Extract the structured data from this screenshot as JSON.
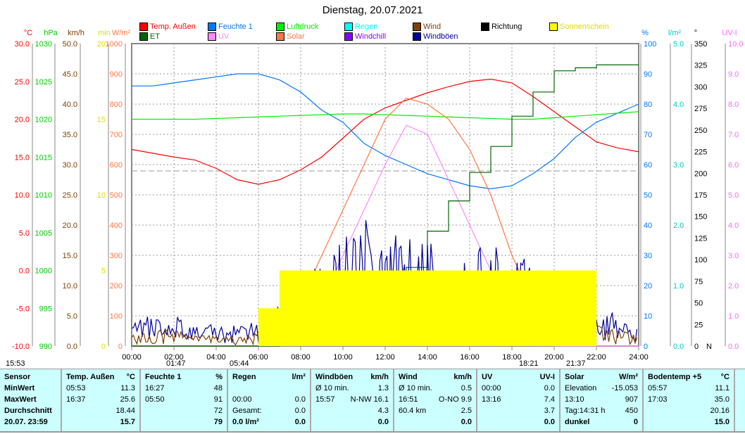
{
  "title": "Dienstag, 20.07.2021",
  "legend": [
    {
      "label": "Temp. Außen",
      "color": "#ff0000"
    },
    {
      "label": "Feuchte 1",
      "color": "#0077ff"
    },
    {
      "label": "Luftdruck",
      "color": "#00ee00"
    },
    {
      "label": "Regen",
      "color": "#00ffff"
    },
    {
      "label": "Wind",
      "color": "#804000"
    },
    {
      "label": "Richtung",
      "color": "#000000"
    },
    {
      "label": "Sonnenschein",
      "color": "#ffff00"
    },
    {
      "label": "ET",
      "color": "#006600"
    },
    {
      "label": "UV",
      "color": "#ff88ff"
    },
    {
      "label": "Solar",
      "color": "#ff7744"
    },
    {
      "label": "Windchill",
      "color": "#8800ff"
    },
    {
      "label": "Windböen",
      "color": "#000099"
    }
  ],
  "chart_data": {
    "type": "line",
    "title": "Dienstag, 20.07.2021",
    "x": [
      0,
      1,
      2,
      3,
      4,
      5,
      6,
      7,
      8,
      9,
      10,
      11,
      12,
      13,
      14,
      15,
      16,
      17,
      18,
      19,
      20,
      21,
      22,
      23,
      24
    ],
    "xticks": [
      "00:00",
      "02:00",
      "04:00",
      "06:00",
      "08:00",
      "10:00",
      "12:00",
      "14:00",
      "16:00",
      "18:00",
      "20:00",
      "22:00",
      "24:00"
    ],
    "axes": [
      {
        "unit": "°C",
        "ticks": [
          "30.0",
          "25.0",
          "20.0",
          "15.0",
          "10.0",
          "5.0",
          "0.0",
          "-5.0",
          "-10.0"
        ],
        "range": [
          -10,
          30
        ],
        "color": "#ff0000"
      },
      {
        "unit": "hPa",
        "ticks": [
          "1030",
          "1025",
          "1020",
          "1015",
          "1010",
          "1005",
          "1000",
          "995",
          "990"
        ],
        "range": [
          990,
          1030
        ],
        "color": "#00cc00"
      },
      {
        "unit": "km/h",
        "ticks": [
          "50.0",
          "45.0",
          "40.0",
          "35.0",
          "30.0",
          "25.0",
          "20.0",
          "15.0",
          "10.0",
          "5.0",
          "0.0"
        ],
        "range": [
          0,
          50
        ],
        "color": "#804000"
      },
      {
        "unit": "min",
        "ticks": [
          "20",
          "15",
          "10",
          "5",
          "0"
        ],
        "range": [
          0,
          20
        ],
        "color": "#dddd00"
      },
      {
        "unit": "W/m²",
        "ticks": [
          "1000",
          "900",
          "800",
          "700",
          "600",
          "500",
          "400",
          "300",
          "200",
          "100",
          "0"
        ],
        "range": [
          0,
          1000
        ],
        "color": "#ff7744"
      },
      {
        "unit": "%",
        "ticks": [
          "100",
          "90",
          "80",
          "70",
          "60",
          "50",
          "40",
          "30",
          "20",
          "10",
          "0"
        ],
        "range": [
          0,
          100
        ],
        "color": "#0077ff"
      },
      {
        "unit": "l/m²",
        "ticks": [
          "5.0",
          "4.0",
          "3.0",
          "2.0",
          "1.0",
          "0.0"
        ],
        "range": [
          0,
          5
        ],
        "color": "#00cccc"
      },
      {
        "unit": "°",
        "ticks": [
          "350",
          "325",
          "300",
          "275",
          "250",
          "225",
          "200",
          "175",
          "150",
          "125",
          "100",
          "75",
          "50",
          "25",
          "0"
        ],
        "range": [
          0,
          360
        ],
        "color": "#000000",
        "extra": "N"
      },
      {
        "unit": "UV-I",
        "ticks": [
          "10.0",
          "9.0",
          "8.0",
          "7.0",
          "6.0",
          "5.0",
          "4.0",
          "3.0",
          "2.0",
          "1.0",
          "0.0"
        ],
        "range": [
          0,
          10
        ],
        "color": "#ff66ff"
      }
    ],
    "series": [
      {
        "name": "Temp. Außen",
        "axis": 0,
        "color": "#ff0000",
        "values": [
          16,
          15.5,
          15,
          14.6,
          13.5,
          12,
          11.4,
          12,
          13.3,
          15,
          17.5,
          20,
          21.5,
          22.5,
          23.5,
          24.3,
          25,
          25.3,
          24.8,
          23,
          21,
          19,
          17,
          16.2,
          15.7
        ]
      },
      {
        "name": "Feuchte 1",
        "axis": 5,
        "color": "#0077ff",
        "values": [
          86,
          86,
          87,
          88,
          89,
          90,
          90,
          88,
          84,
          78,
          74,
          67,
          63,
          60,
          57,
          55,
          53,
          52,
          53,
          57,
          62,
          69,
          74,
          77,
          80
        ]
      },
      {
        "name": "Luftdruck",
        "axis": 1,
        "color": "#00ee00",
        "values": [
          1020,
          1020,
          1020,
          1020,
          1020.1,
          1020.2,
          1020.3,
          1020.4,
          1020.5,
          1020.6,
          1020.7,
          1020.7,
          1020.6,
          1020.5,
          1020.4,
          1020.3,
          1020.2,
          1020.1,
          1020,
          1020,
          1020.2,
          1020.4,
          1020.6,
          1020.8,
          1021
        ]
      },
      {
        "name": "Solar",
        "axis": 4,
        "color": "#ff7744",
        "values": [
          0,
          0,
          0,
          0,
          0,
          0,
          0,
          50,
          150,
          300,
          450,
          600,
          750,
          820,
          800,
          750,
          650,
          500,
          300,
          150,
          50,
          5,
          0,
          0,
          0
        ]
      },
      {
        "name": "UV",
        "axis": 8,
        "color": "#ff88ff",
        "values": [
          0,
          0,
          0,
          0,
          0,
          0,
          0,
          0,
          0.5,
          1.5,
          3,
          4.5,
          6,
          7.3,
          7,
          5.5,
          4,
          2.5,
          1.2,
          0.3,
          0,
          0,
          0,
          0,
          0
        ]
      },
      {
        "name": "ET",
        "axis": 6,
        "color": "#006600",
        "values": [
          0,
          0,
          0,
          0,
          0,
          0,
          0,
          0.05,
          0.2,
          0.4,
          0.6,
          0.9,
          1.1,
          1.3,
          1.9,
          2.4,
          2.87,
          3.3,
          3.8,
          4.2,
          4.55,
          4.6,
          4.65,
          4.65,
          4.65
        ]
      },
      {
        "name": "Windböen",
        "axis": 2,
        "color": "#000099",
        "values": [
          2,
          3,
          3,
          2,
          2,
          2,
          3,
          4,
          6,
          8,
          10,
          12,
          11,
          10,
          10,
          9,
          9,
          10,
          9,
          8,
          6,
          5,
          4,
          3,
          2
        ]
      },
      {
        "name": "Wind",
        "axis": 2,
        "color": "#804000",
        "values": [
          1,
          1.5,
          1.5,
          1,
          1,
          1,
          1.5,
          2,
          3,
          4,
          5,
          6,
          5.5,
          5,
          5,
          4.5,
          4.5,
          5,
          4.5,
          4,
          3,
          2.5,
          2,
          1.5,
          1
        ]
      },
      {
        "name": "Sonnenschein",
        "axis": 3,
        "color": "#ffff00",
        "values": [
          0,
          0,
          0,
          0,
          0,
          0,
          1,
          2,
          2,
          2,
          2,
          2,
          2,
          2,
          2,
          2,
          2,
          2,
          2,
          2,
          2,
          2,
          0,
          0,
          0
        ]
      }
    ]
  },
  "markers": {
    "left": "15:53",
    "m1": "01:47",
    "m2": "05:44",
    "m3": "18:21",
    "m4": "21:37"
  },
  "table": {
    "sensor": {
      "h": "Sensor",
      "r": [
        "MinWert",
        "MaxWert",
        "Durchschnitt",
        "20.07. 23:59"
      ]
    },
    "temp": {
      "h": "Temp. Außen",
      "u": "°C",
      "r": [
        [
          "05:53",
          "11.3"
        ],
        [
          "16:37",
          "25.6"
        ],
        [
          "",
          "18.44"
        ],
        [
          "",
          "15.7"
        ]
      ]
    },
    "hum": {
      "h": "Feuchte 1",
      "u": "%",
      "r": [
        [
          "16:27",
          "48"
        ],
        [
          "05:50",
          "91"
        ],
        [
          "",
          "72"
        ],
        [
          "",
          "79"
        ]
      ]
    },
    "rain": {
      "h": "Regen",
      "u": "l/m²",
      "r": [
        [
          "",
          ""
        ],
        [
          "00:00",
          "0.0"
        ],
        [
          "Gesamt:",
          "0.0"
        ],
        [
          "0.0 l/m²",
          "0.0"
        ]
      ]
    },
    "gust": {
      "h": "Windböen",
      "u": "km/h",
      "r": [
        [
          "Ø 10 min.",
          "1.3"
        ],
        [
          "15:57",
          "N-NW 16.1"
        ],
        [
          "",
          "4.3"
        ],
        [
          "",
          "0.0"
        ]
      ]
    },
    "wind": {
      "h": "Wind",
      "u": "km/h",
      "r": [
        [
          "Ø 10 min.",
          "0.5"
        ],
        [
          "16:51",
          "O-NO 9.9"
        ],
        [
          "60.4 km",
          "2.5"
        ],
        [
          "",
          "0.0"
        ]
      ]
    },
    "uv": {
      "h": "UV",
      "u": "UV-I",
      "r": [
        [
          "00:00",
          "0.0"
        ],
        [
          "13:16",
          "7.4"
        ],
        [
          "",
          "3.7"
        ],
        [
          "",
          "0.0"
        ]
      ]
    },
    "solar": {
      "h": "Solar",
      "u": "W/m²",
      "r": [
        [
          "Elevation",
          "-15.053"
        ],
        [
          "13:10",
          "907"
        ],
        [
          "Tag:14:31 h",
          "450"
        ],
        [
          "dunkel",
          "0"
        ]
      ]
    },
    "soil": {
      "h": "Bodentemp +5",
      "u": "°C",
      "r": [
        [
          "05:57",
          "11.1"
        ],
        [
          "17:03",
          "35.0"
        ],
        [
          "",
          "20.16"
        ],
        [
          "",
          "15.0"
        ]
      ]
    }
  }
}
